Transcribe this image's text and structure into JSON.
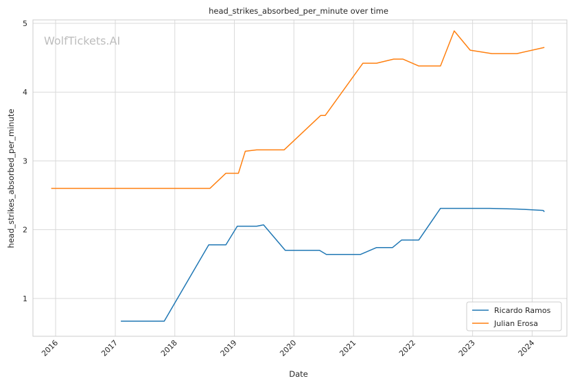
{
  "watermark": "WolfTickets.AI",
  "colors": {
    "ricardo": "#1f77b4",
    "julian": "#ff7f0e",
    "grid": "#d9d9d9",
    "frame": "#cccccc"
  },
  "chart_data": {
    "type": "line",
    "title": "head_strikes_absorbed_per_minute over time",
    "xlabel": "Date",
    "ylabel": "head_strikes_absorbed_per_minute",
    "xlim": [
      "2015-08-15",
      "2024-08-01"
    ],
    "ylim": [
      0.45,
      5.05
    ],
    "x_ticks": [
      "2016",
      "2017",
      "2018",
      "2019",
      "2020",
      "2021",
      "2022",
      "2023",
      "2024"
    ],
    "y_ticks": [
      1,
      2,
      3,
      4,
      5
    ],
    "grid": true,
    "legend_position": "bottom-right",
    "series": [
      {
        "name": "Ricardo Ramos",
        "color": "#1f77b4",
        "points": [
          [
            "2017-02-04",
            0.67
          ],
          [
            "2017-10-28",
            0.67
          ],
          [
            "2018-07-28",
            1.78
          ],
          [
            "2018-11-10",
            1.78
          ],
          [
            "2019-01-19",
            2.05
          ],
          [
            "2019-05-18",
            2.05
          ],
          [
            "2019-06-29",
            2.07
          ],
          [
            "2019-11-09",
            1.7
          ],
          [
            "2020-06-06",
            1.7
          ],
          [
            "2020-07-18",
            1.64
          ],
          [
            "2021-02-13",
            1.64
          ],
          [
            "2021-05-22",
            1.74
          ],
          [
            "2021-08-28",
            1.74
          ],
          [
            "2021-10-23",
            1.85
          ],
          [
            "2022-02-05",
            1.85
          ],
          [
            "2022-06-18",
            2.31
          ],
          [
            "2023-04-15",
            2.31
          ],
          [
            "2023-09-30",
            2.3
          ],
          [
            "2024-03-09",
            2.28
          ],
          [
            "2024-03-16",
            2.26
          ]
        ]
      },
      {
        "name": "Julian Erosa",
        "color": "#ff7f0e",
        "points": [
          [
            "2015-12-05",
            2.6
          ],
          [
            "2018-08-04",
            2.6
          ],
          [
            "2018-11-10",
            2.82
          ],
          [
            "2019-01-26",
            2.82
          ],
          [
            "2019-03-09",
            3.14
          ],
          [
            "2019-05-18",
            3.16
          ],
          [
            "2019-11-02",
            3.16
          ],
          [
            "2020-06-13",
            3.66
          ],
          [
            "2020-07-11",
            3.66
          ],
          [
            "2021-02-27",
            4.42
          ],
          [
            "2021-05-22",
            4.42
          ],
          [
            "2021-09-04",
            4.48
          ],
          [
            "2021-10-30",
            4.48
          ],
          [
            "2022-02-05",
            4.38
          ],
          [
            "2022-06-18",
            4.38
          ],
          [
            "2022-09-10",
            4.89
          ],
          [
            "2022-12-17",
            4.61
          ],
          [
            "2023-04-29",
            4.56
          ],
          [
            "2023-09-30",
            4.56
          ],
          [
            "2024-03-16",
            4.65
          ]
        ]
      }
    ]
  }
}
